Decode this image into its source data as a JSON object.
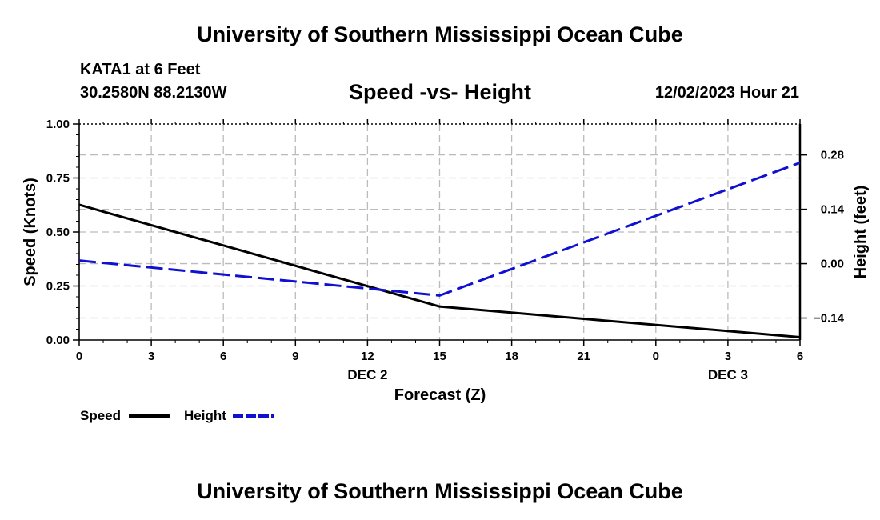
{
  "header": {
    "title": "University of Southern Mississippi Ocean Cube",
    "station": "KATA1 at 6 Feet",
    "coordinates": "30.2580N  88.2130W",
    "datetime": "12/02/2023 Hour 21"
  },
  "footer": {
    "title": "University of Southern Mississippi Ocean Cube"
  },
  "colors": {
    "speed": "#000000",
    "height": "#1010d0",
    "grid": "#bbbbbb"
  },
  "chart_data": {
    "type": "line",
    "title": "Speed -vs- Height",
    "xlabel": "Forecast (Z)",
    "ylabel": "Speed (Knots)",
    "y2label": "Height (feet)",
    "x": [
      0,
      3,
      6,
      9,
      12,
      15,
      18,
      21,
      24,
      27,
      30
    ],
    "xlim": [
      0,
      30
    ],
    "x_tick_labels": [
      "0",
      "3",
      "6",
      "9",
      "12",
      "15",
      "18",
      "21",
      "0",
      "3",
      "6"
    ],
    "date_labels": [
      {
        "x": 12,
        "text": "DEC 2"
      },
      {
        "x": 27,
        "text": "DEC 3"
      }
    ],
    "ylim": [
      0,
      1
    ],
    "y_ticks": [
      0,
      0.25,
      0.5,
      0.75,
      1
    ],
    "y_tick_labels": [
      "0.00",
      "0.25",
      "0.50",
      "0.75",
      "1.00"
    ],
    "y2lim": [
      -0.1966,
      0.3596
    ],
    "y2_ticks": [
      -0.14,
      0,
      0.14,
      0.28
    ],
    "y2_tick_labels": [
      "−0.14",
      "0.00",
      "0.14",
      "0.28"
    ],
    "grid": true,
    "legend_position": "bottom-left",
    "series": [
      {
        "name": "Speed",
        "axis": "left",
        "style": "solid",
        "x": [
          0,
          15,
          30
        ],
        "values": [
          0.626,
          0.155,
          0.013
        ]
      },
      {
        "name": "Height",
        "axis": "right",
        "style": "dashed",
        "x": [
          0,
          15,
          30
        ],
        "values": [
          0.008,
          -0.082,
          0.26
        ]
      }
    ]
  }
}
